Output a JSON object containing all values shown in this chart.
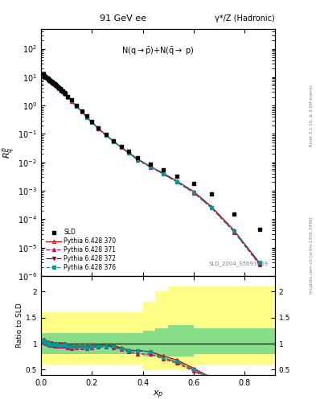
{
  "title_left": "91 GeV ee",
  "title_right": "γ*/Z (Hadronic)",
  "ylabel_main": "$R^{p}_{q}$",
  "ylabel_ratio": "Ratio to SLD",
  "xlabel": "$x_p$",
  "right_label": "Rivet 3.1.10, ≥ 3.2M events",
  "right_label2": "mcplots.cern.ch [arXiv:1306.3436]",
  "sld_x": [
    0.008,
    0.012,
    0.016,
    0.02,
    0.024,
    0.028,
    0.032,
    0.036,
    0.04,
    0.044,
    0.048,
    0.052,
    0.056,
    0.06,
    0.065,
    0.07,
    0.075,
    0.08,
    0.085,
    0.09,
    0.095,
    0.105,
    0.12,
    0.14,
    0.16,
    0.18,
    0.2,
    0.225,
    0.255,
    0.285,
    0.315,
    0.345,
    0.38,
    0.43,
    0.48,
    0.535,
    0.6,
    0.67,
    0.76,
    0.86
  ],
  "sld_y": [
    13.0,
    11.0,
    10.2,
    9.6,
    9.0,
    8.5,
    7.9,
    7.4,
    7.0,
    6.6,
    6.2,
    5.8,
    5.4,
    5.0,
    4.6,
    4.2,
    3.85,
    3.5,
    3.2,
    2.9,
    2.6,
    2.1,
    1.55,
    1.0,
    0.65,
    0.42,
    0.27,
    0.165,
    0.095,
    0.058,
    0.037,
    0.025,
    0.015,
    0.0085,
    0.0055,
    0.0032,
    0.0018,
    0.0008,
    0.00015,
    4.5e-05
  ],
  "py370_x": [
    0.008,
    0.012,
    0.016,
    0.02,
    0.024,
    0.028,
    0.032,
    0.036,
    0.04,
    0.044,
    0.048,
    0.052,
    0.056,
    0.06,
    0.065,
    0.07,
    0.075,
    0.08,
    0.085,
    0.09,
    0.095,
    0.105,
    0.12,
    0.14,
    0.16,
    0.18,
    0.2,
    0.225,
    0.255,
    0.285,
    0.315,
    0.345,
    0.38,
    0.43,
    0.48,
    0.535,
    0.6,
    0.67,
    0.76,
    0.86
  ],
  "py370_y": [
    14.0,
    11.8,
    10.8,
    10.0,
    9.3,
    8.7,
    8.1,
    7.5,
    7.1,
    6.7,
    6.2,
    5.8,
    5.4,
    5.0,
    4.6,
    4.2,
    3.85,
    3.5,
    3.2,
    2.9,
    2.6,
    2.05,
    1.48,
    0.96,
    0.62,
    0.4,
    0.26,
    0.16,
    0.092,
    0.056,
    0.034,
    0.022,
    0.013,
    0.0072,
    0.0042,
    0.0022,
    0.00095,
    0.00028,
    4e-05,
    2.8e-06
  ],
  "py371_x": [
    0.008,
    0.012,
    0.016,
    0.02,
    0.024,
    0.028,
    0.032,
    0.036,
    0.04,
    0.044,
    0.048,
    0.052,
    0.056,
    0.06,
    0.065,
    0.07,
    0.075,
    0.08,
    0.085,
    0.09,
    0.095,
    0.105,
    0.12,
    0.14,
    0.16,
    0.18,
    0.2,
    0.225,
    0.255,
    0.285,
    0.315,
    0.345,
    0.38,
    0.43,
    0.48,
    0.535,
    0.6,
    0.67,
    0.76,
    0.86
  ],
  "py371_y": [
    13.5,
    11.3,
    10.4,
    9.6,
    9.0,
    8.4,
    7.8,
    7.2,
    6.8,
    6.4,
    6.0,
    5.6,
    5.2,
    4.8,
    4.4,
    4.0,
    3.7,
    3.35,
    3.05,
    2.75,
    2.5,
    1.95,
    1.42,
    0.92,
    0.6,
    0.385,
    0.25,
    0.155,
    0.089,
    0.054,
    0.033,
    0.021,
    0.012,
    0.0068,
    0.0039,
    0.002,
    0.00085,
    0.00025,
    3.5e-05,
    2.5e-06
  ],
  "py372_x": [
    0.008,
    0.012,
    0.016,
    0.02,
    0.024,
    0.028,
    0.032,
    0.036,
    0.04,
    0.044,
    0.048,
    0.052,
    0.056,
    0.06,
    0.065,
    0.07,
    0.075,
    0.08,
    0.085,
    0.09,
    0.095,
    0.105,
    0.12,
    0.14,
    0.16,
    0.18,
    0.2,
    0.225,
    0.255,
    0.285,
    0.315,
    0.345,
    0.38,
    0.43,
    0.48,
    0.535,
    0.6,
    0.67,
    0.76,
    0.86
  ],
  "py372_y": [
    13.8,
    11.5,
    10.6,
    9.8,
    9.1,
    8.5,
    7.9,
    7.3,
    6.9,
    6.5,
    6.1,
    5.7,
    5.3,
    4.9,
    4.5,
    4.1,
    3.75,
    3.42,
    3.12,
    2.82,
    2.55,
    2.0,
    1.45,
    0.94,
    0.61,
    0.39,
    0.255,
    0.158,
    0.091,
    0.055,
    0.0335,
    0.0215,
    0.013,
    0.0072,
    0.004,
    0.0021,
    0.0009,
    0.00026,
    3.8e-05,
    2.7e-06
  ],
  "py376_x": [
    0.008,
    0.012,
    0.016,
    0.02,
    0.024,
    0.028,
    0.032,
    0.036,
    0.04,
    0.044,
    0.048,
    0.052,
    0.056,
    0.06,
    0.065,
    0.07,
    0.075,
    0.08,
    0.085,
    0.09,
    0.095,
    0.105,
    0.12,
    0.14,
    0.16,
    0.18,
    0.2,
    0.225,
    0.255,
    0.285,
    0.315,
    0.345,
    0.38,
    0.43,
    0.48,
    0.535,
    0.6,
    0.67,
    0.76,
    0.86
  ],
  "py376_y": [
    13.8,
    11.5,
    10.6,
    9.8,
    9.1,
    8.5,
    7.9,
    7.3,
    6.9,
    6.5,
    6.1,
    5.7,
    5.3,
    4.9,
    4.5,
    4.1,
    3.75,
    3.42,
    3.12,
    2.82,
    2.55,
    2.0,
    1.45,
    0.94,
    0.61,
    0.39,
    0.255,
    0.158,
    0.091,
    0.055,
    0.0335,
    0.0215,
    0.013,
    0.0072,
    0.004,
    0.0021,
    0.0009,
    0.00026,
    3.8e-05,
    3e-06
  ],
  "color_370": "#cc0000",
  "color_371": "#cc0044",
  "color_372": "#880022",
  "color_376": "#009999",
  "xlim": [
    0.0,
    0.92
  ],
  "ylim_main": [
    1e-06,
    500
  ],
  "ylim_ratio": [
    0.4,
    2.3
  ],
  "band_edges": [
    0.0,
    0.05,
    0.1,
    0.15,
    0.2,
    0.25,
    0.3,
    0.35,
    0.4,
    0.45,
    0.5,
    0.55,
    0.6,
    0.65,
    0.7,
    0.75,
    0.8,
    0.85,
    0.92
  ],
  "yellow_bot": [
    0.6,
    0.6,
    0.6,
    0.6,
    0.6,
    0.6,
    0.6,
    0.6,
    0.5,
    0.5,
    0.5,
    0.5,
    0.6,
    0.6,
    0.6,
    0.6,
    0.6,
    0.6
  ],
  "yellow_top": [
    1.6,
    1.6,
    1.6,
    1.6,
    1.6,
    1.6,
    1.6,
    1.6,
    1.8,
    2.0,
    2.1,
    2.1,
    2.1,
    2.1,
    2.1,
    2.1,
    2.1,
    2.1
  ],
  "green_bot": [
    0.8,
    0.8,
    0.8,
    0.8,
    0.8,
    0.8,
    0.8,
    0.8,
    0.75,
    0.75,
    0.75,
    0.75,
    0.8,
    0.8,
    0.8,
    0.8,
    0.8,
    0.8
  ],
  "green_top": [
    1.2,
    1.2,
    1.2,
    1.2,
    1.2,
    1.2,
    1.2,
    1.2,
    1.25,
    1.3,
    1.35,
    1.35,
    1.3,
    1.3,
    1.3,
    1.3,
    1.3,
    1.3
  ]
}
